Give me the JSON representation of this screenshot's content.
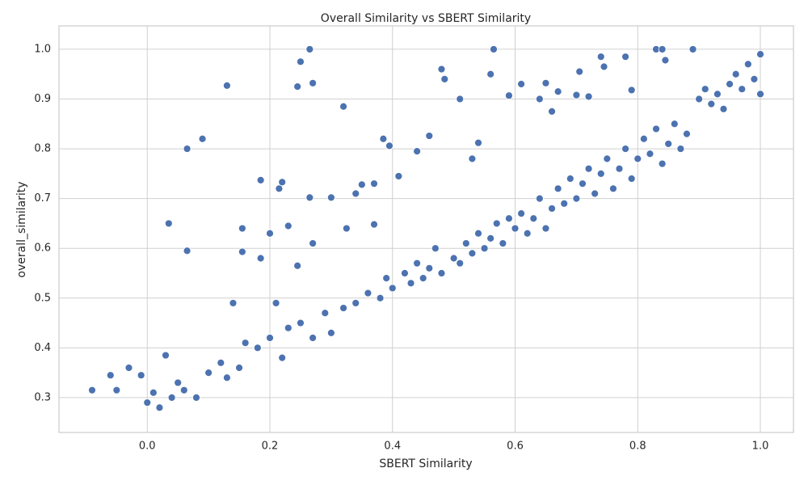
{
  "chart_data": {
    "type": "scatter",
    "title": "Overall Similarity vs SBERT Similarity",
    "x_label": "SBERT Similarity",
    "y_label": "overall_similarity",
    "color": "#4c72b0",
    "grid": true,
    "xlim": [
      -0.144,
      1.054
    ],
    "ylim": [
      0.23,
      1.047
    ],
    "xticks": [
      {
        "value": 0,
        "label": "0.0"
      },
      0.2,
      0.4,
      0.6,
      0.8,
      {
        "value": 1,
        "label": "1.0"
      }
    ],
    "yticks": [
      0.3,
      0.4,
      0.5,
      0.6,
      0.7,
      0.8,
      0.9,
      {
        "value": 1,
        "label": "1.0"
      }
    ],
    "x": [
      -0.09,
      -0.06,
      -0.05,
      -0.03,
      -0.01,
      0.03,
      0.035,
      0.065,
      0.065,
      0.09,
      0.13,
      0.14,
      0.155,
      0.155,
      0.185,
      0.185,
      0.2,
      0.21,
      0.215,
      0.22,
      0.23,
      0.245,
      0.245,
      0.25,
      0.265,
      0.265,
      0.27,
      0.27,
      0.3,
      0.32,
      0.325,
      0.34,
      0.35,
      0.37,
      0.37,
      0.385,
      0.395,
      0.41,
      0.44,
      0.46,
      0.48,
      0.485,
      0.51,
      0.53,
      0.54,
      0.56,
      0.565,
      0.59,
      0.61,
      0.64,
      0.65,
      0.66,
      0.67,
      0.7,
      0.705,
      0.72,
      0.74,
      0.745,
      0.78,
      0.79,
      0.83,
      0.84,
      0.845,
      0.89,
      0.0,
      0.01,
      0.02,
      0.04,
      0.05,
      0.06,
      0.08,
      0.1,
      0.12,
      0.13,
      0.15,
      0.16,
      0.18,
      0.2,
      0.22,
      0.23,
      0.25,
      0.27,
      0.29,
      0.3,
      0.32,
      0.34,
      0.36,
      0.38,
      0.39,
      0.4,
      0.42,
      0.43,
      0.44,
      0.45,
      0.46,
      0.47,
      0.48,
      0.5,
      0.51,
      0.52,
      0.53,
      0.54,
      0.55,
      0.56,
      0.57,
      0.58,
      0.59,
      0.6,
      0.61,
      0.62,
      0.63,
      0.64,
      0.65,
      0.66,
      0.67,
      0.68,
      0.69,
      0.7,
      0.71,
      0.72,
      0.73,
      0.74,
      0.75,
      0.76,
      0.77,
      0.78,
      0.79,
      0.8,
      0.81,
      0.82,
      0.83,
      0.84,
      0.85,
      0.86,
      0.87,
      0.88,
      0.9,
      0.91,
      0.92,
      0.93,
      0.94,
      0.95,
      0.96,
      0.97,
      0.98,
      0.99,
      1.0,
      1.0
    ],
    "y": [
      0.315,
      0.345,
      0.315,
      0.36,
      0.345,
      0.385,
      0.65,
      0.595,
      0.8,
      0.82,
      0.927,
      0.49,
      0.64,
      0.593,
      0.737,
      0.58,
      0.63,
      0.49,
      0.72,
      0.733,
      0.645,
      0.565,
      0.925,
      0.975,
      1.0,
      0.702,
      0.61,
      0.932,
      0.702,
      0.885,
      0.64,
      0.71,
      0.728,
      0.73,
      0.648,
      0.82,
      0.806,
      0.745,
      0.795,
      0.826,
      0.96,
      0.94,
      0.9,
      0.78,
      0.812,
      0.95,
      1.0,
      0.907,
      0.93,
      0.9,
      0.932,
      0.875,
      0.915,
      0.908,
      0.955,
      0.905,
      0.985,
      0.965,
      0.985,
      0.918,
      1.0,
      1.0,
      0.978,
      1.0,
      0.29,
      0.31,
      0.28,
      0.3,
      0.33,
      0.315,
      0.3,
      0.35,
      0.37,
      0.34,
      0.36,
      0.41,
      0.4,
      0.42,
      0.38,
      0.44,
      0.45,
      0.42,
      0.47,
      0.43,
      0.48,
      0.49,
      0.51,
      0.5,
      0.54,
      0.52,
      0.55,
      0.53,
      0.57,
      0.54,
      0.56,
      0.6,
      0.55,
      0.58,
      0.57,
      0.61,
      0.59,
      0.63,
      0.6,
      0.62,
      0.65,
      0.61,
      0.66,
      0.64,
      0.67,
      0.63,
      0.66,
      0.7,
      0.64,
      0.68,
      0.72,
      0.69,
      0.74,
      0.7,
      0.73,
      0.76,
      0.71,
      0.75,
      0.78,
      0.72,
      0.76,
      0.8,
      0.74,
      0.78,
      0.82,
      0.79,
      0.84,
      0.77,
      0.81,
      0.85,
      0.8,
      0.83,
      0.9,
      0.92,
      0.89,
      0.91,
      0.88,
      0.93,
      0.95,
      0.92,
      0.97,
      0.94,
      0.99,
      0.91
    ]
  }
}
